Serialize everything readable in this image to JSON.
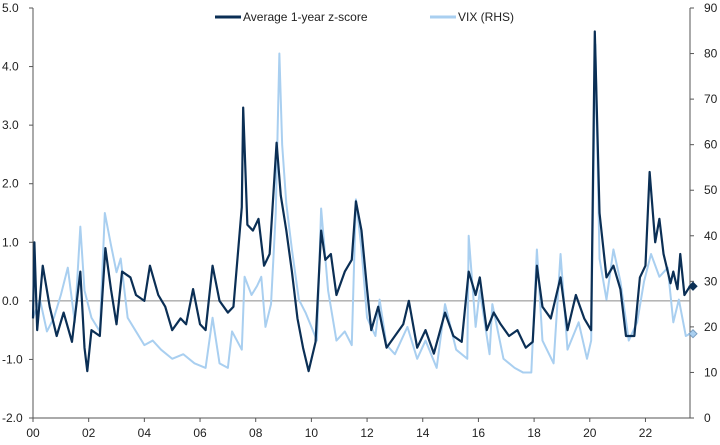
{
  "chart_data": {
    "type": "line",
    "title": "",
    "xlabel": "",
    "ylabel": "",
    "legend": {
      "placement": "top-center"
    },
    "grid": false,
    "x_range": [
      2000,
      2023.6
    ],
    "x_ticks": [
      {
        "x": 2000,
        "label": "00"
      },
      {
        "x": 2002,
        "label": "02"
      },
      {
        "x": 2004,
        "label": "04"
      },
      {
        "x": 2006,
        "label": "06"
      },
      {
        "x": 2008,
        "label": "08"
      },
      {
        "x": 2010,
        "label": "10"
      },
      {
        "x": 2012,
        "label": "12"
      },
      {
        "x": 2014,
        "label": "14"
      },
      {
        "x": 2016,
        "label": "16"
      },
      {
        "x": 2018,
        "label": "18"
      },
      {
        "x": 2020,
        "label": "20"
      },
      {
        "x": 2022,
        "label": "22"
      }
    ],
    "y_left": {
      "range": [
        -2,
        5
      ],
      "ticks": [
        "-2.0",
        "-1.0",
        "0.0",
        "1.0",
        "2.0",
        "3.0",
        "4.0",
        "5.0"
      ],
      "zero_line": 0
    },
    "y_right": {
      "range": [
        0,
        90
      ],
      "ticks": [
        "0",
        "10",
        "20",
        "30",
        "40",
        "50",
        "60",
        "70",
        "80",
        "90"
      ]
    },
    "series": [
      {
        "name": "VIX (RHS)",
        "axis": "right",
        "color": "#a9cff0",
        "end_marker": "diamond",
        "points": [
          [
            2000.0,
            22
          ],
          [
            2000.25,
            26
          ],
          [
            2000.5,
            19
          ],
          [
            2000.75,
            22
          ],
          [
            2001.0,
            27
          ],
          [
            2001.25,
            33
          ],
          [
            2001.5,
            21
          ],
          [
            2001.7,
            42
          ],
          [
            2001.85,
            28
          ],
          [
            2002.1,
            22
          ],
          [
            2002.4,
            19
          ],
          [
            2002.58,
            45
          ],
          [
            2002.8,
            38
          ],
          [
            2003.0,
            32
          ],
          [
            2003.15,
            35
          ],
          [
            2003.4,
            22
          ],
          [
            2003.7,
            19
          ],
          [
            2004.0,
            16
          ],
          [
            2004.3,
            17
          ],
          [
            2004.6,
            15
          ],
          [
            2005.0,
            13
          ],
          [
            2005.4,
            14
          ],
          [
            2005.8,
            12
          ],
          [
            2006.2,
            11
          ],
          [
            2006.45,
            22
          ],
          [
            2006.7,
            12
          ],
          [
            2007.0,
            11
          ],
          [
            2007.15,
            19
          ],
          [
            2007.5,
            15
          ],
          [
            2007.6,
            31
          ],
          [
            2007.85,
            27
          ],
          [
            2008.05,
            29
          ],
          [
            2008.2,
            31
          ],
          [
            2008.35,
            20
          ],
          [
            2008.55,
            25
          ],
          [
            2008.72,
            45
          ],
          [
            2008.85,
            80
          ],
          [
            2008.95,
            60
          ],
          [
            2009.1,
            47
          ],
          [
            2009.3,
            37
          ],
          [
            2009.55,
            26
          ],
          [
            2009.8,
            23
          ],
          [
            2010.0,
            20
          ],
          [
            2010.2,
            17
          ],
          [
            2010.35,
            46
          ],
          [
            2010.6,
            28
          ],
          [
            2010.9,
            17
          ],
          [
            2011.2,
            19
          ],
          [
            2011.45,
            16
          ],
          [
            2011.6,
            48
          ],
          [
            2011.8,
            37
          ],
          [
            2012.0,
            22
          ],
          [
            2012.3,
            18
          ],
          [
            2012.45,
            26
          ],
          [
            2012.7,
            16
          ],
          [
            2013.0,
            14
          ],
          [
            2013.45,
            20
          ],
          [
            2013.8,
            13
          ],
          [
            2014.1,
            17
          ],
          [
            2014.5,
            11
          ],
          [
            2014.8,
            25
          ],
          [
            2015.2,
            15
          ],
          [
            2015.6,
            13
          ],
          [
            2015.65,
            40
          ],
          [
            2015.9,
            20
          ],
          [
            2016.05,
            28
          ],
          [
            2016.4,
            14
          ],
          [
            2016.5,
            25
          ],
          [
            2016.9,
            13
          ],
          [
            2017.3,
            11
          ],
          [
            2017.6,
            10
          ],
          [
            2017.9,
            10
          ],
          [
            2018.1,
            37
          ],
          [
            2018.3,
            17
          ],
          [
            2018.7,
            12
          ],
          [
            2018.95,
            36
          ],
          [
            2019.2,
            15
          ],
          [
            2019.6,
            21
          ],
          [
            2019.9,
            13
          ],
          [
            2020.05,
            17
          ],
          [
            2020.2,
            82
          ],
          [
            2020.35,
            35
          ],
          [
            2020.6,
            26
          ],
          [
            2020.85,
            37
          ],
          [
            2021.1,
            30
          ],
          [
            2021.4,
            17
          ],
          [
            2021.7,
            21
          ],
          [
            2021.95,
            30
          ],
          [
            2022.2,
            36
          ],
          [
            2022.5,
            31
          ],
          [
            2022.8,
            33
          ],
          [
            2023.0,
            21
          ],
          [
            2023.2,
            26
          ],
          [
            2023.45,
            18
          ],
          [
            2023.6,
            18.5
          ]
        ]
      },
      {
        "name": "Average 1-year z-score",
        "axis": "left",
        "color": "#0b2f55",
        "end_marker": "diamond",
        "points": [
          [
            2000.0,
            -0.3
          ],
          [
            2000.05,
            1.0
          ],
          [
            2000.15,
            -0.5
          ],
          [
            2000.35,
            0.6
          ],
          [
            2000.6,
            -0.1
          ],
          [
            2000.85,
            -0.6
          ],
          [
            2001.1,
            -0.2
          ],
          [
            2001.4,
            -0.7
          ],
          [
            2001.7,
            0.5
          ],
          [
            2001.85,
            -0.8
          ],
          [
            2001.95,
            -1.2
          ],
          [
            2002.1,
            -0.5
          ],
          [
            2002.4,
            -0.6
          ],
          [
            2002.6,
            0.9
          ],
          [
            2002.8,
            0.2
          ],
          [
            2003.0,
            -0.4
          ],
          [
            2003.2,
            0.5
          ],
          [
            2003.5,
            0.4
          ],
          [
            2003.7,
            0.1
          ],
          [
            2004.0,
            0.0
          ],
          [
            2004.2,
            0.6
          ],
          [
            2004.5,
            0.1
          ],
          [
            2004.75,
            -0.1
          ],
          [
            2005.0,
            -0.5
          ],
          [
            2005.3,
            -0.3
          ],
          [
            2005.5,
            -0.4
          ],
          [
            2005.75,
            0.2
          ],
          [
            2006.0,
            -0.4
          ],
          [
            2006.2,
            -0.5
          ],
          [
            2006.45,
            0.6
          ],
          [
            2006.7,
            0.0
          ],
          [
            2007.0,
            -0.2
          ],
          [
            2007.2,
            -0.1
          ],
          [
            2007.5,
            1.6
          ],
          [
            2007.55,
            3.3
          ],
          [
            2007.7,
            1.3
          ],
          [
            2007.9,
            1.2
          ],
          [
            2008.1,
            1.4
          ],
          [
            2008.3,
            0.6
          ],
          [
            2008.5,
            0.8
          ],
          [
            2008.75,
            2.7
          ],
          [
            2008.9,
            1.8
          ],
          [
            2009.1,
            1.2
          ],
          [
            2009.3,
            0.5
          ],
          [
            2009.5,
            -0.3
          ],
          [
            2009.7,
            -0.8
          ],
          [
            2009.9,
            -1.2
          ],
          [
            2010.15,
            -0.7
          ],
          [
            2010.35,
            1.2
          ],
          [
            2010.5,
            0.7
          ],
          [
            2010.7,
            0.8
          ],
          [
            2010.9,
            0.1
          ],
          [
            2011.2,
            0.5
          ],
          [
            2011.45,
            0.7
          ],
          [
            2011.6,
            1.7
          ],
          [
            2011.8,
            1.2
          ],
          [
            2012.0,
            0.2
          ],
          [
            2012.15,
            -0.5
          ],
          [
            2012.4,
            -0.1
          ],
          [
            2012.7,
            -0.8
          ],
          [
            2013.0,
            -0.6
          ],
          [
            2013.3,
            -0.4
          ],
          [
            2013.5,
            0.0
          ],
          [
            2013.8,
            -0.8
          ],
          [
            2014.1,
            -0.5
          ],
          [
            2014.4,
            -0.9
          ],
          [
            2014.8,
            -0.2
          ],
          [
            2015.1,
            -0.6
          ],
          [
            2015.4,
            -0.7
          ],
          [
            2015.65,
            0.5
          ],
          [
            2015.9,
            0.1
          ],
          [
            2016.05,
            0.4
          ],
          [
            2016.3,
            -0.5
          ],
          [
            2016.55,
            -0.2
          ],
          [
            2016.8,
            -0.4
          ],
          [
            2017.1,
            -0.6
          ],
          [
            2017.4,
            -0.5
          ],
          [
            2017.7,
            -0.8
          ],
          [
            2017.95,
            -0.7
          ],
          [
            2018.1,
            0.6
          ],
          [
            2018.3,
            -0.1
          ],
          [
            2018.6,
            -0.3
          ],
          [
            2018.95,
            0.4
          ],
          [
            2019.2,
            -0.5
          ],
          [
            2019.5,
            0.1
          ],
          [
            2019.8,
            -0.3
          ],
          [
            2020.05,
            -0.5
          ],
          [
            2020.18,
            4.6
          ],
          [
            2020.35,
            1.5
          ],
          [
            2020.6,
            0.4
          ],
          [
            2020.85,
            0.6
          ],
          [
            2021.1,
            0.2
          ],
          [
            2021.3,
            -0.6
          ],
          [
            2021.6,
            -0.6
          ],
          [
            2021.8,
            0.4
          ],
          [
            2022.0,
            0.6
          ],
          [
            2022.15,
            2.2
          ],
          [
            2022.35,
            1.0
          ],
          [
            2022.5,
            1.4
          ],
          [
            2022.65,
            0.8
          ],
          [
            2022.9,
            0.3
          ],
          [
            2023.0,
            0.5
          ],
          [
            2023.15,
            0.2
          ],
          [
            2023.25,
            0.8
          ],
          [
            2023.4,
            0.1
          ],
          [
            2023.6,
            0.25
          ]
        ]
      }
    ]
  }
}
